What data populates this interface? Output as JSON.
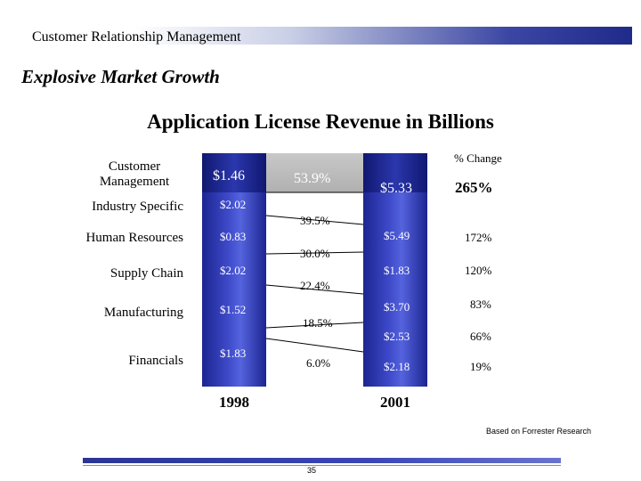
{
  "header": {
    "section_title": "Customer Relationship Management"
  },
  "slide": {
    "subtitle": "Explosive Market Growth",
    "chart_title": "Application License Revenue in Billions",
    "pct_change_header": "% Change",
    "source": "Based on Forrester Research",
    "page_number": "35"
  },
  "chart_data": {
    "type": "table",
    "title": "Application License Revenue in Billions",
    "years": [
      "1998",
      "2001"
    ],
    "rows": [
      {
        "label": "Customer Management",
        "v1998": "$1.46",
        "v2001": "$5.33",
        "growth": "53.9%",
        "pct_change": "265%"
      },
      {
        "label": "Industry Specific",
        "v1998": "$2.02",
        "v2001": "$5.49",
        "growth": "39.5%",
        "pct_change": "172%"
      },
      {
        "label": "Human Resources",
        "v1998": "$0.83",
        "v2001": "$1.83",
        "growth": "30.0%",
        "pct_change": "120%"
      },
      {
        "label": "Supply Chain",
        "v1998": "$2.02",
        "v2001": "$3.70",
        "growth": "22.4%",
        "pct_change": "83%"
      },
      {
        "label": "Manufacturing",
        "v1998": "$1.52",
        "v2001": "$2.53",
        "growth": "18.5%",
        "pct_change": "66%"
      },
      {
        "label": "Financials",
        "v1998": "$1.83",
        "v2001": "$2.18",
        "growth": "6.0%",
        "pct_change": "19%"
      }
    ]
  }
}
